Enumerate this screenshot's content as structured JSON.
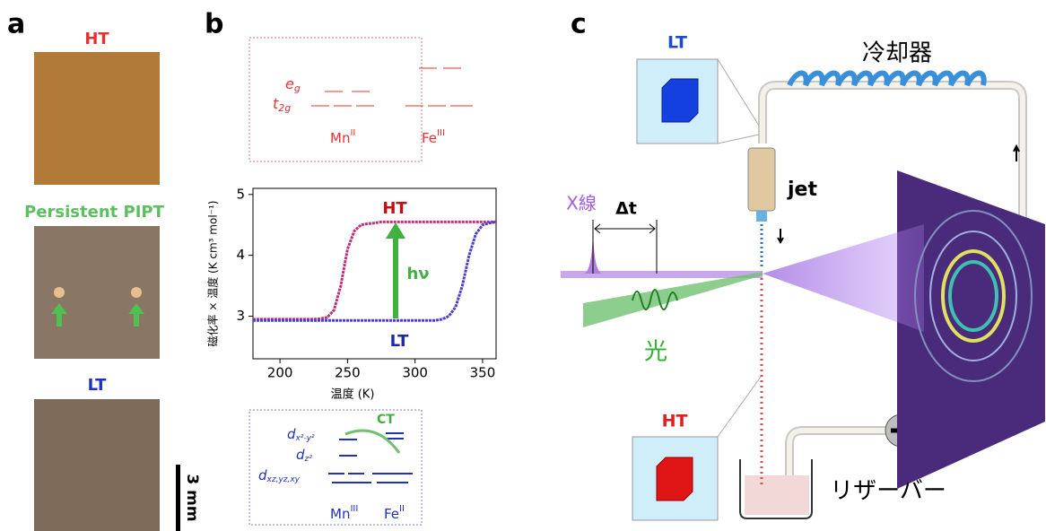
{
  "panels": {
    "a": "a",
    "b": "b",
    "c": "c"
  },
  "panel_a": {
    "ht_label": "HT",
    "pipt_label": "Persistent PIPT",
    "lt_label": "LT",
    "scale_bar": "3 mm"
  },
  "panel_b_top": {
    "eg": {
      "main": "e",
      "sub": "g"
    },
    "t2g": {
      "main": "t",
      "sub": "2g"
    },
    "mn": {
      "main": "Mn",
      "sup": "II"
    },
    "fe": {
      "main": "Fe",
      "sup": "III"
    }
  },
  "panel_b_bottom": {
    "dx2y2": {
      "main": "d",
      "sub": "x²-y²"
    },
    "dz2": {
      "main": "d",
      "sub": "z²"
    },
    "dxz": {
      "main": "d",
      "sub": "xz,yz,xy"
    },
    "ct": "CT",
    "mn": {
      "main": "Mn",
      "sup": "III"
    },
    "fe": {
      "main": "Fe",
      "sup": "II"
    }
  },
  "chart_data": {
    "type": "line",
    "xlabel": "温度 (K)",
    "ylabel": "磁化率 × 温度 (K cm³ mol⁻¹)",
    "annotations": [
      "HT",
      "LT",
      "hν"
    ],
    "x": [
      180,
      185,
      190,
      195,
      200,
      205,
      210,
      215,
      220,
      225,
      230,
      235,
      240,
      245,
      250,
      255,
      260,
      265,
      270,
      275,
      280,
      285,
      290,
      295,
      300,
      305,
      310,
      315,
      320,
      325,
      330,
      335,
      340,
      345,
      350,
      355,
      360
    ],
    "series": [
      {
        "color": "#c0307a",
        "values": [
          2.95,
          2.95,
          2.95,
          2.95,
          2.95,
          2.95,
          2.95,
          2.95,
          2.95,
          2.95,
          2.96,
          2.98,
          3.1,
          3.5,
          4.1,
          4.4,
          4.5,
          4.52,
          4.53,
          4.55,
          4.55,
          4.55,
          4.55,
          4.55,
          4.55,
          4.55,
          4.55,
          4.55,
          4.55,
          4.55,
          4.55,
          4.55,
          4.55,
          4.55,
          4.55,
          4.55,
          4.55
        ]
      },
      {
        "color": "#4a40d0",
        "values": [
          2.93,
          2.93,
          2.93,
          2.93,
          2.93,
          2.93,
          2.93,
          2.93,
          2.93,
          2.93,
          2.93,
          2.93,
          2.93,
          2.93,
          2.93,
          2.93,
          2.93,
          2.93,
          2.93,
          2.93,
          2.93,
          2.93,
          2.93,
          2.93,
          2.93,
          2.93,
          2.93,
          2.93,
          2.95,
          3.0,
          3.15,
          3.5,
          4.0,
          4.35,
          4.5,
          4.53,
          4.55
        ]
      }
    ],
    "xlim": [
      180,
      360
    ],
    "ylim": [
      2.3,
      5.1
    ],
    "xticks": [
      200,
      250,
      300,
      350
    ],
    "yticks": [
      3,
      4,
      5
    ]
  },
  "panel_c": {
    "lt": "LT",
    "cooler": "冷却器",
    "jet": "jet",
    "xray": "X線",
    "dt": "Δt",
    "light": "光",
    "ht": "HT",
    "reservoir": "リザーバー"
  }
}
